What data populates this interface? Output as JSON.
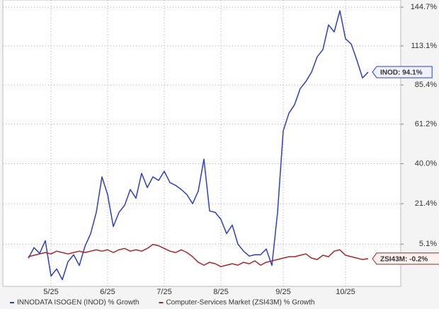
{
  "chart_data": {
    "type": "line",
    "categories": [
      null,
      null,
      null,
      null,
      "5/25",
      null,
      null,
      null,
      null,
      null,
      null,
      null,
      null,
      null,
      "6/25",
      null,
      null,
      null,
      null,
      null,
      null,
      null,
      null,
      null,
      "7/25",
      null,
      null,
      null,
      null,
      null,
      null,
      null,
      null,
      null,
      "8/25",
      null,
      null,
      null,
      null,
      null,
      null,
      null,
      null,
      null,
      null,
      "9/25",
      null,
      null,
      null,
      null,
      null,
      null,
      null,
      null,
      null,
      null,
      "10/25",
      null,
      null,
      null,
      null
    ],
    "series": [
      {
        "name": "INNODATA ISOGEN (INOD) % Growth",
        "color": "#2b3fc4",
        "end_label": "INOD: 94.1%",
        "values": [
          -0.1,
          3.8,
          1.7,
          6.4,
          -6.2,
          -3.8,
          -7.4,
          -1.3,
          1.2,
          -2.6,
          4.3,
          9.1,
          17.7,
          33.6,
          25.4,
          11.9,
          17.7,
          20.7,
          27.7,
          23.8,
          35.3,
          28.6,
          33.6,
          31.9,
          36.3,
          30.9,
          29.6,
          27.7,
          25.4,
          21.4,
          27.0,
          42.3,
          18.3,
          17.7,
          14.8,
          9.1,
          12.5,
          5.1,
          2.5,
          0.7,
          1.2,
          1.2,
          3.3,
          -2.6,
          17.7,
          57.4,
          67.6,
          72.8,
          83.0,
          87.7,
          94.1,
          105.0,
          110.3,
          129.7,
          124.0,
          141.6,
          118.5,
          114.6,
          102.5,
          90.1,
          94.1
        ]
      },
      {
        "name": "Computer-Services Market (ZSI43M) % Growth",
        "color": "#b22222",
        "end_label": "ZSI43M: -0.2%",
        "values": [
          0.5,
          1.0,
          1.5,
          2.0,
          1.5,
          2.5,
          2.0,
          1.5,
          2.0,
          2.5,
          2.0,
          2.5,
          3.0,
          2.5,
          3.0,
          2.0,
          3.0,
          3.5,
          2.5,
          3.0,
          2.5,
          3.5,
          5.0,
          4.5,
          3.5,
          2.5,
          2.0,
          3.0,
          2.0,
          0.5,
          -1.5,
          -2.5,
          -1.5,
          -2.0,
          -3.0,
          -2.5,
          -2.0,
          -2.5,
          -1.5,
          -2.0,
          -1.0,
          -2.5,
          -1.5,
          -1.0,
          -0.5,
          0.0,
          0.5,
          0.5,
          1.0,
          1.5,
          0.0,
          -0.5,
          1.0,
          0.5,
          2.5,
          3.0,
          1.0,
          0.5,
          0.0,
          -0.5,
          -0.2
        ]
      }
    ],
    "ylim": [
      -9.6,
      151
    ],
    "yticks": [
      {
        "value": 144.7,
        "label": "144.7%"
      },
      {
        "value": 113.1,
        "label": "113.1%"
      },
      {
        "value": 85.4,
        "label": "85.4%"
      },
      {
        "value": 61.2,
        "label": "61.2%"
      },
      {
        "value": 40.0,
        "label": "40.0%"
      },
      {
        "value": 21.4,
        "label": "21.4%"
      },
      {
        "value": 5.1,
        "label": "5.1%"
      }
    ],
    "log_scale": true,
    "grid": true
  }
}
